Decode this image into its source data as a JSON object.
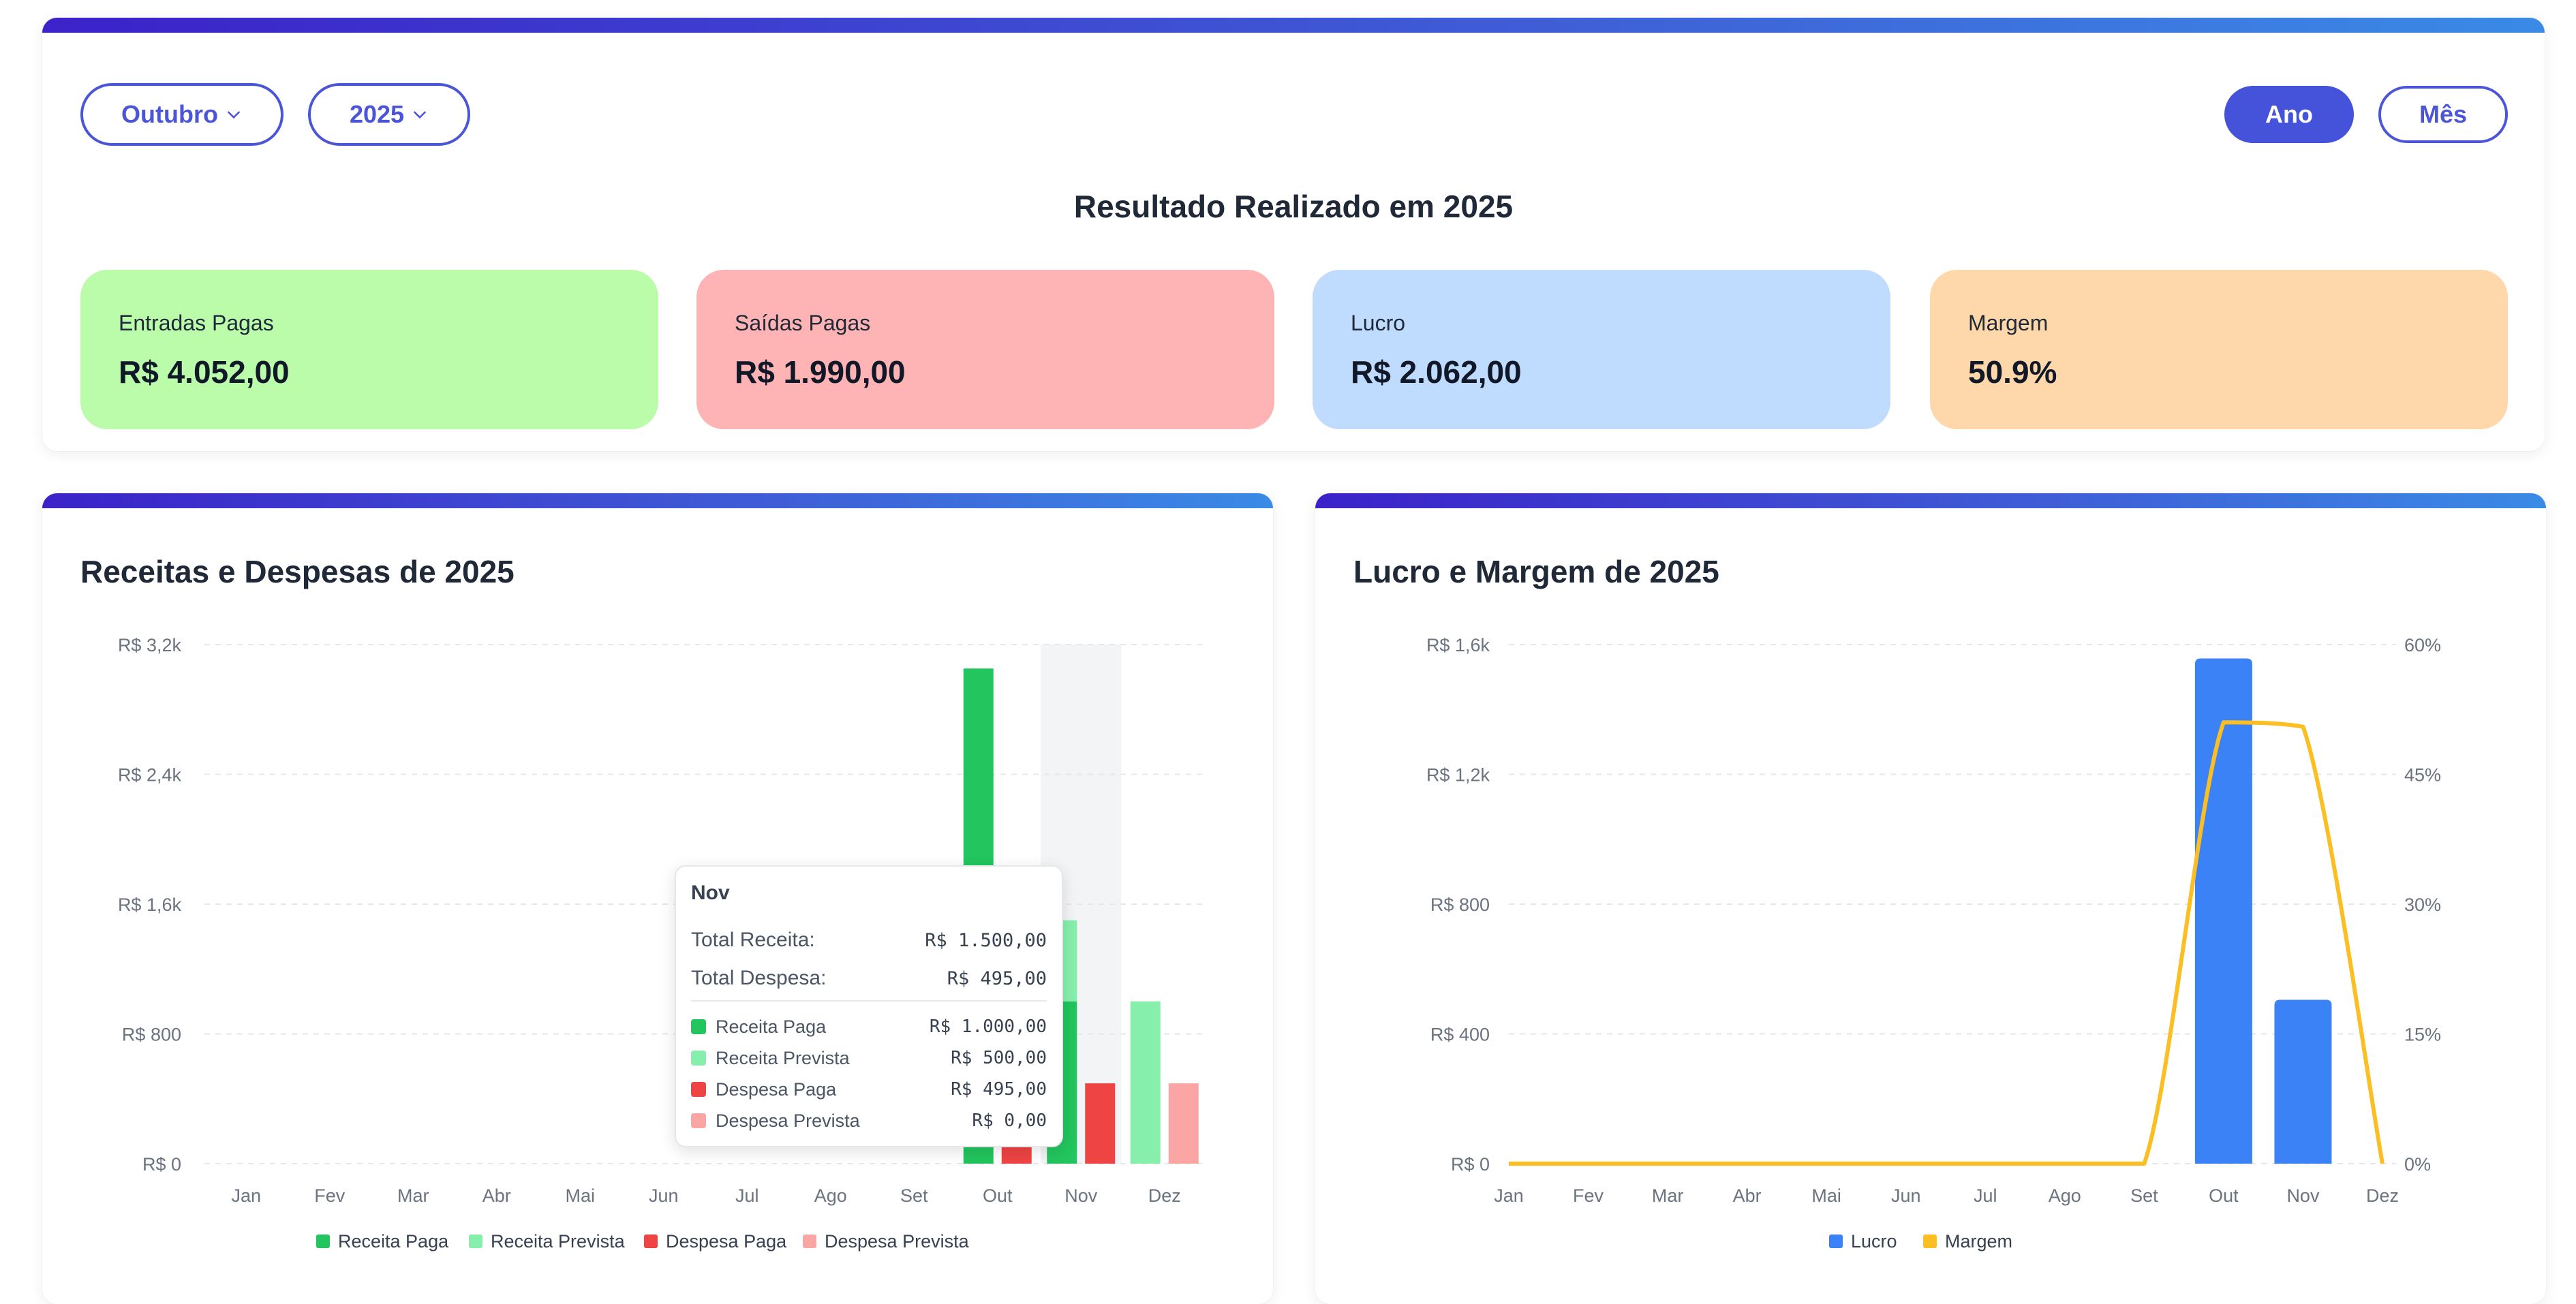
{
  "filters": {
    "month": "Outubro",
    "year": "2025",
    "view_year": "Ano",
    "view_month": "Mês"
  },
  "summary": {
    "title": "Resultado Realizado em 2025",
    "cards": [
      {
        "label": "Entradas Pagas",
        "value": "R$ 4.052,00",
        "color": "#bbfcab"
      },
      {
        "label": "Saídas Pagas",
        "value": "R$ 1.990,00",
        "color": "#feb4b4"
      },
      {
        "label": "Lucro",
        "value": "R$ 2.062,00",
        "color": "#bfdbfe"
      },
      {
        "label": "Margem",
        "value": "50.9%",
        "color": "#fed7aa"
      }
    ]
  },
  "colors": {
    "accent": "#4453d9",
    "receita_paga": "#22c55e",
    "receita_prevista": "#86efac",
    "despesa_paga": "#ef4444",
    "despesa_prevista": "#fca5a5",
    "lucro": "#3b82f6",
    "margem": "#fbbf24"
  },
  "tooltip": {
    "title": "Nov",
    "total_receita_label": "Total Receita:",
    "total_receita": "R$ 1.500,00",
    "total_despesa_label": "Total Despesa:",
    "total_despesa": "R$ 495,00",
    "items": [
      {
        "label": "Receita Paga",
        "value": "R$ 1.000,00"
      },
      {
        "label": "Receita Prevista",
        "value": "R$ 500,00"
      },
      {
        "label": "Despesa Paga",
        "value": "R$ 495,00"
      },
      {
        "label": "Despesa Prevista",
        "value": "R$ 0,00"
      }
    ]
  },
  "chart_data": [
    {
      "type": "bar",
      "title": "Receitas e Despesas de 2025",
      "categories": [
        "Jan",
        "Fev",
        "Mar",
        "Abr",
        "Mai",
        "Jun",
        "Jul",
        "Ago",
        "Set",
        "Out",
        "Nov",
        "Dez"
      ],
      "y_ticks": [
        "R$ 0",
        "R$ 800",
        "R$ 1,6k",
        "R$ 2,4k",
        "R$ 3,2k"
      ],
      "ylim": [
        0,
        3200
      ],
      "highlighted_category": "Nov",
      "series": [
        {
          "name": "Receita Paga",
          "values": [
            0,
            0,
            0,
            0,
            0,
            0,
            0,
            0,
            0,
            3052,
            1000,
            0
          ]
        },
        {
          "name": "Receita Prevista",
          "values": [
            0,
            0,
            0,
            0,
            0,
            0,
            0,
            0,
            0,
            0,
            500,
            1000
          ]
        },
        {
          "name": "Despesa Paga",
          "values": [
            0,
            0,
            0,
            0,
            0,
            0,
            0,
            0,
            0,
            1495,
            495,
            0
          ]
        },
        {
          "name": "Despesa Prevista",
          "values": [
            0,
            0,
            0,
            0,
            0,
            0,
            0,
            0,
            0,
            0,
            0,
            495
          ]
        }
      ],
      "legend": "bottom"
    },
    {
      "type": "bar+line",
      "title": "Lucro e Margem de 2025",
      "categories": [
        "Jan",
        "Fev",
        "Mar",
        "Abr",
        "Mai",
        "Jun",
        "Jul",
        "Ago",
        "Set",
        "Out",
        "Nov",
        "Dez"
      ],
      "y_ticks": [
        "R$ 0",
        "R$ 400",
        "R$ 800",
        "R$ 1,2k",
        "R$ 1,6k"
      ],
      "ylim": [
        0,
        1600
      ],
      "y2_ticks": [
        "0%",
        "15%",
        "30%",
        "45%",
        "60%"
      ],
      "y2lim": [
        0,
        60
      ],
      "series": [
        {
          "name": "Lucro",
          "axis": "left",
          "values": [
            0,
            0,
            0,
            0,
            0,
            0,
            0,
            0,
            0,
            1557,
            505,
            0
          ]
        },
        {
          "name": "Margem",
          "axis": "right",
          "values": [
            0,
            0,
            0,
            0,
            0,
            0,
            0,
            0,
            0,
            51,
            50.5,
            0
          ]
        }
      ],
      "legend": "bottom"
    }
  ]
}
